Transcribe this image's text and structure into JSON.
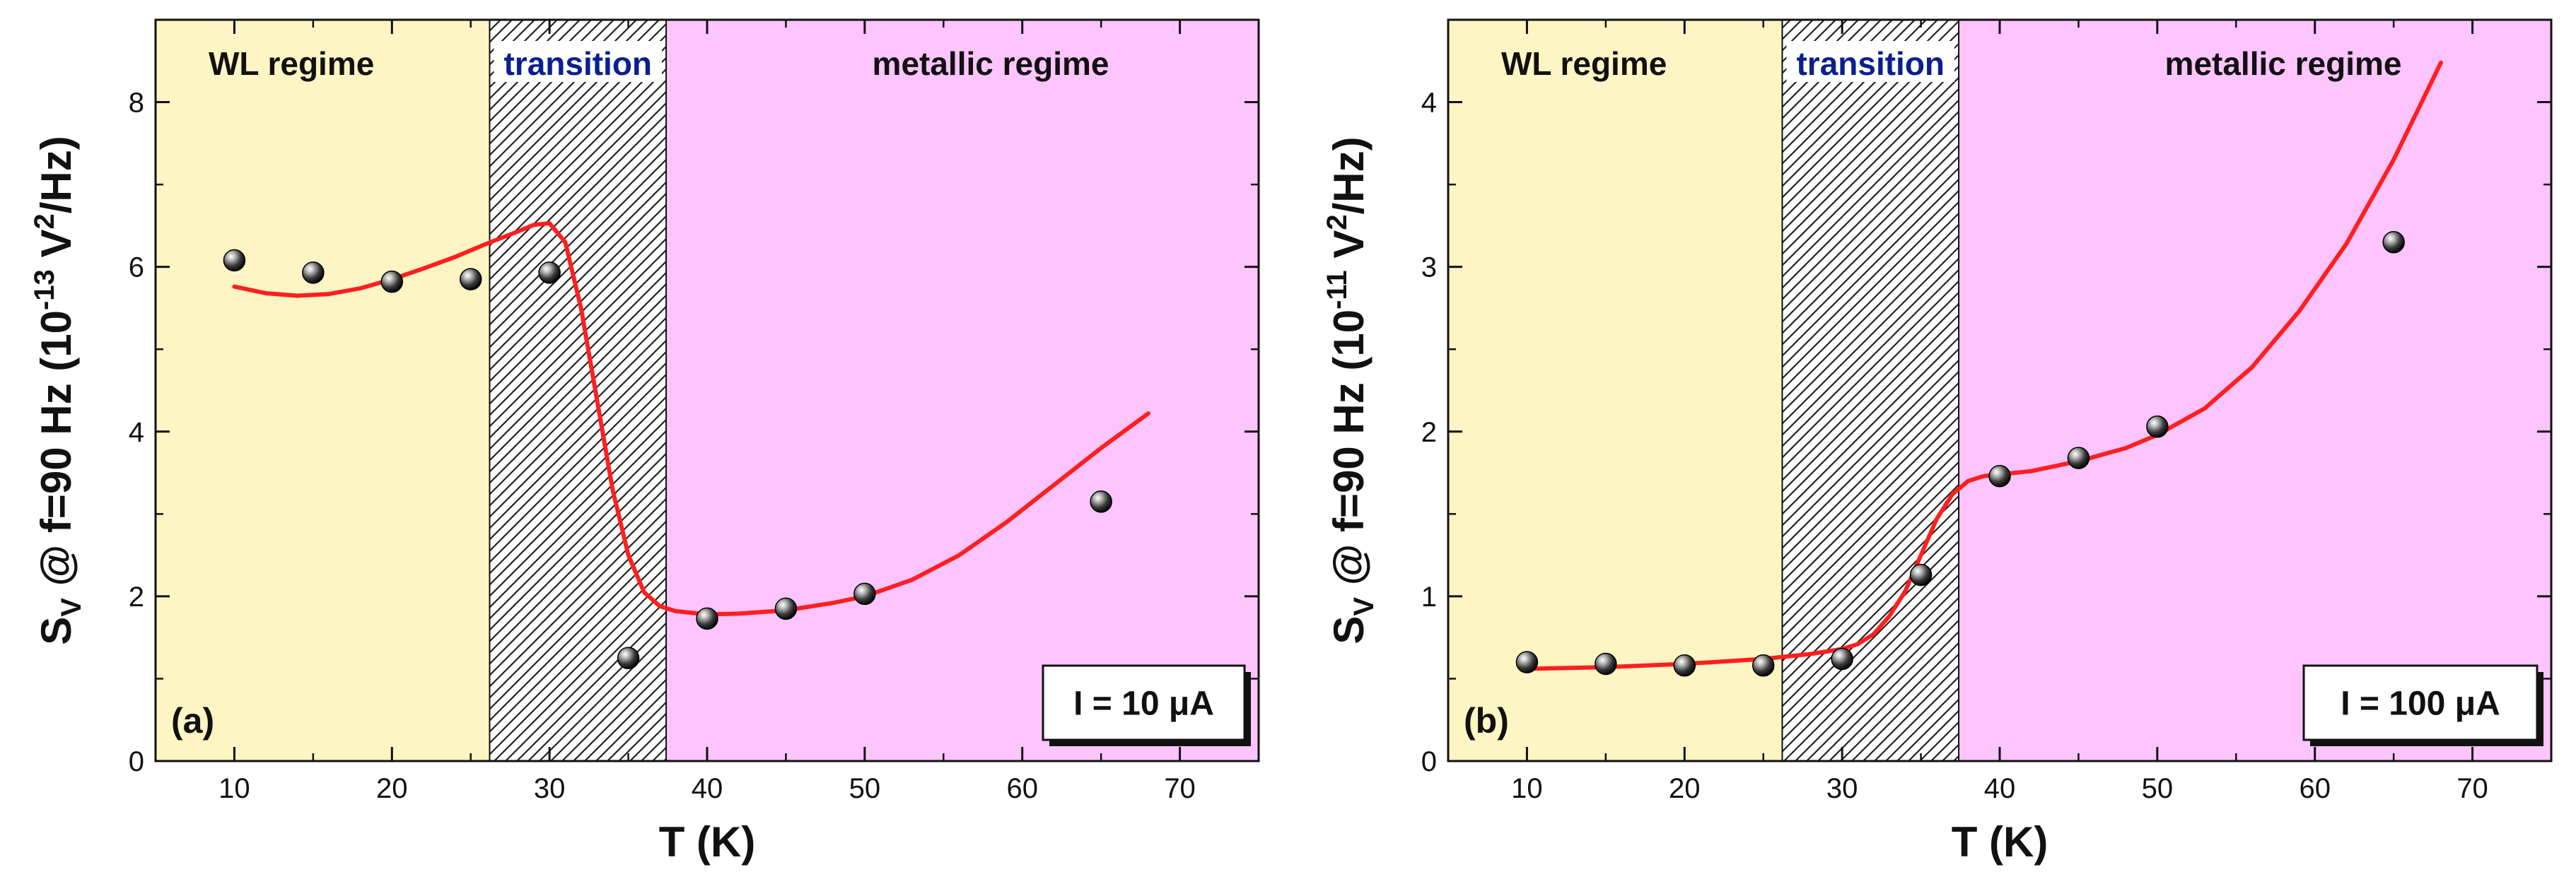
{
  "chart_data": [
    {
      "type": "scatter",
      "panel_label": "(a)",
      "xlabel": "T (K)",
      "ylabel": {
        "main": "S",
        "sub": "V",
        "mid": " @ f=90 Hz  (10",
        "exp1": "-13",
        "unit": " V",
        "exp2": "2",
        "tail": "/Hz)"
      },
      "xlim": [
        5,
        75
      ],
      "ylim": [
        0,
        9
      ],
      "xticks": [
        10,
        20,
        30,
        40,
        50,
        60,
        70
      ],
      "yticks": [
        0,
        2,
        4,
        6,
        8
      ],
      "legend_text": "I = 10 μA",
      "regions": [
        {
          "label": "WL regime",
          "from": 5,
          "to": 26.2,
          "color": "#fdf5c3",
          "pattern": "none"
        },
        {
          "label": "transition",
          "from": 26.2,
          "to": 37.4,
          "color": "#ffffff",
          "pattern": "hatch"
        },
        {
          "label": "metallic regime",
          "from": 37.4,
          "to": 75,
          "color": "#fdc4fd",
          "pattern": "none"
        }
      ],
      "series": [
        {
          "name": "data",
          "x": [
            10,
            15,
            20,
            25,
            30,
            35,
            40,
            45,
            50,
            65
          ],
          "y": [
            6.08,
            5.93,
            5.82,
            5.85,
            5.93,
            1.25,
            1.73,
            1.85,
            2.03,
            3.15
          ],
          "color": "#222222"
        },
        {
          "name": "fit",
          "x": [
            10,
            12,
            14,
            16,
            18,
            20,
            22,
            24,
            26,
            28,
            29,
            30,
            31,
            32,
            33,
            34,
            35,
            36,
            37,
            38,
            40,
            42,
            45,
            48,
            50,
            53,
            56,
            59,
            62,
            65,
            68
          ],
          "y": [
            5.76,
            5.68,
            5.65,
            5.67,
            5.74,
            5.85,
            5.98,
            6.12,
            6.28,
            6.43,
            6.51,
            6.53,
            6.3,
            5.5,
            4.4,
            3.3,
            2.5,
            2.05,
            1.88,
            1.82,
            1.78,
            1.79,
            1.83,
            1.92,
            2.0,
            2.2,
            2.5,
            2.9,
            3.35,
            3.8,
            4.22
          ],
          "color": "#ff1f1f"
        }
      ]
    },
    {
      "type": "scatter",
      "panel_label": "(b)",
      "xlabel": "T (K)",
      "ylabel": {
        "main": "S",
        "sub": "V",
        "mid": " @ f=90 Hz  (10",
        "exp1": "-11",
        "unit": " V",
        "exp2": "2",
        "tail": "/Hz)"
      },
      "xlim": [
        5,
        75
      ],
      "ylim": [
        0,
        4.5
      ],
      "xticks": [
        10,
        20,
        30,
        40,
        50,
        60,
        70
      ],
      "yticks": [
        0,
        1,
        2,
        3,
        4
      ],
      "legend_text": "I = 100 μA",
      "regions": [
        {
          "label": "WL regime",
          "from": 5,
          "to": 26.2,
          "color": "#fdf5c3",
          "pattern": "none"
        },
        {
          "label": "transition",
          "from": 26.2,
          "to": 37.4,
          "color": "#ffffff",
          "pattern": "hatch"
        },
        {
          "label": "metallic regime",
          "from": 37.4,
          "to": 75,
          "color": "#fdc4fd",
          "pattern": "none"
        }
      ],
      "series": [
        {
          "name": "data",
          "x": [
            10,
            15,
            20,
            25,
            30,
            35,
            40,
            45,
            50,
            65
          ],
          "y": [
            0.6,
            0.59,
            0.58,
            0.58,
            0.62,
            1.13,
            1.73,
            1.84,
            2.03,
            3.15
          ],
          "color": "#222222"
        },
        {
          "name": "fit",
          "x": [
            10,
            15,
            20,
            25,
            28,
            30,
            31,
            32,
            33,
            34,
            35,
            36,
            37,
            38,
            39,
            40,
            42,
            45,
            48,
            50,
            53,
            56,
            59,
            62,
            65,
            68
          ],
          "y": [
            0.56,
            0.57,
            0.59,
            0.62,
            0.65,
            0.68,
            0.71,
            0.77,
            0.88,
            1.03,
            1.25,
            1.47,
            1.62,
            1.7,
            1.73,
            1.74,
            1.76,
            1.82,
            1.9,
            1.98,
            2.14,
            2.39,
            2.73,
            3.14,
            3.65,
            4.24
          ],
          "color": "#ff1f1f"
        }
      ]
    }
  ]
}
